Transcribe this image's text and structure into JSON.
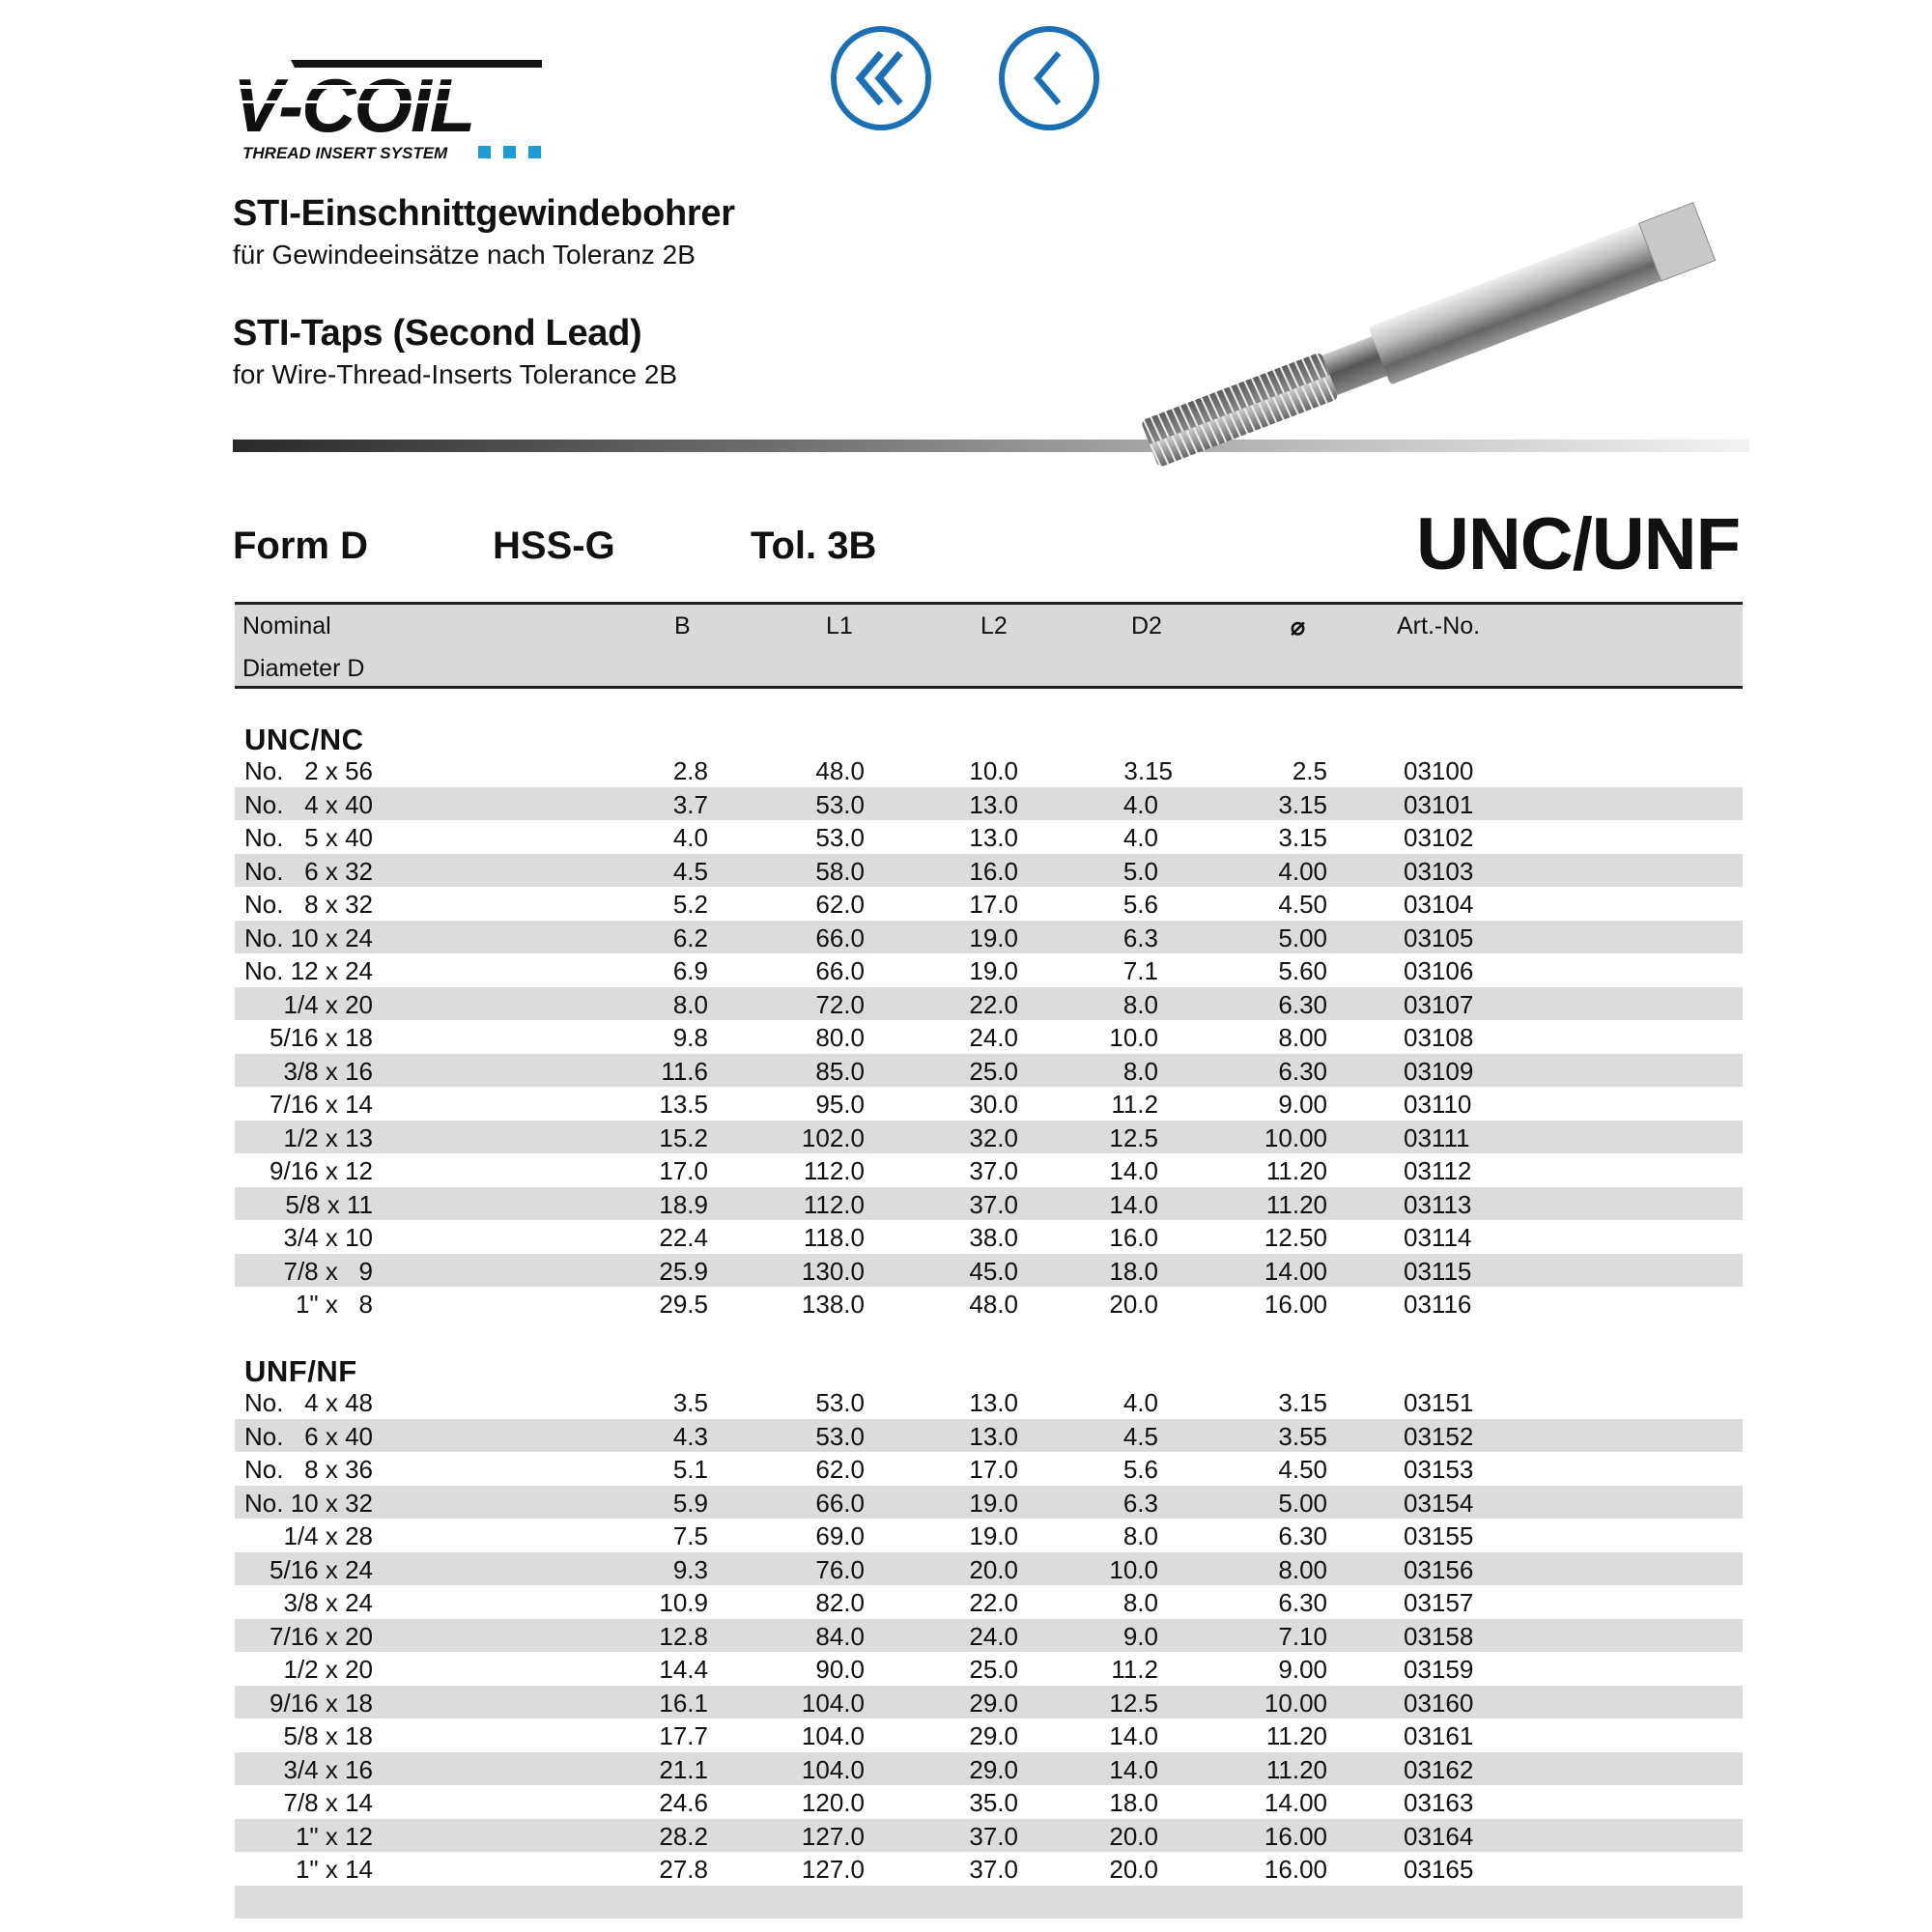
{
  "logo": {
    "text": "V-COIL",
    "tagline": "THREAD INSERT SYSTEM",
    "accent": "#1e9ad6"
  },
  "nav": {
    "first_icon": "double-chevron-left-icon",
    "back_icon": "chevron-left-icon",
    "color": "#1a6fb5"
  },
  "title_de": "STI-Einschnittgewindebohrer",
  "subtitle_de": "für Gewindeeinsätze nach Toleranz 2B",
  "title_en": "STI-Taps (Second Lead)",
  "subtitle_en": "for Wire-Thread-Inserts Tolerance 2B",
  "specs": {
    "form": "Form D",
    "material": "HSS-G",
    "tolerance": "Tol. 3B",
    "standard": "UNC/UNF"
  },
  "table": {
    "headers": {
      "nominal_1": "Nominal",
      "nominal_2": "Diameter D",
      "b": "B",
      "l1": "L1",
      "l2": "L2",
      "d2": "D2",
      "square": "⌀",
      "art": "Art.-No."
    },
    "sections": [
      {
        "title": "UNC/NC",
        "rows": [
          [
            "No.",
            "2 x 56",
            "2.8",
            "48.0",
            "10.0",
            "3.15",
            "2.5",
            "03100"
          ],
          [
            "No.",
            "4 x 40",
            "3.7",
            "53.0",
            "13.0",
            "4.0",
            "3.15",
            "03101"
          ],
          [
            "No.",
            "5 x 40",
            "4.0",
            "53.0",
            "13.0",
            "4.0",
            "3.15",
            "03102"
          ],
          [
            "No.",
            "6 x 32",
            "4.5",
            "58.0",
            "16.0",
            "5.0",
            "4.00",
            "03103"
          ],
          [
            "No.",
            "8 x 32",
            "5.2",
            "62.0",
            "17.0",
            "5.6",
            "4.50",
            "03104"
          ],
          [
            "No.",
            "10 x 24",
            "6.2",
            "66.0",
            "19.0",
            "6.3",
            "5.00",
            "03105"
          ],
          [
            "No.",
            "12 x 24",
            "6.9",
            "66.0",
            "19.0",
            "7.1",
            "5.60",
            "03106"
          ],
          [
            "",
            "1/4 x 20",
            "8.0",
            "72.0",
            "22.0",
            "8.0",
            "6.30",
            "03107"
          ],
          [
            "",
            "5/16 x 18",
            "9.8",
            "80.0",
            "24.0",
            "10.0",
            "8.00",
            "03108"
          ],
          [
            "",
            "3/8 x 16",
            "11.6",
            "85.0",
            "25.0",
            "8.0",
            "6.30",
            "03109"
          ],
          [
            "",
            "7/16 x 14",
            "13.5",
            "95.0",
            "30.0",
            "11.2",
            "9.00",
            "03110"
          ],
          [
            "",
            "1/2 x 13",
            "15.2",
            "102.0",
            "32.0",
            "12.5",
            "10.00",
            "03111"
          ],
          [
            "",
            "9/16 x 12",
            "17.0",
            "112.0",
            "37.0",
            "14.0",
            "11.20",
            "03112"
          ],
          [
            "",
            "5/8 x 11",
            "18.9",
            "112.0",
            "37.0",
            "14.0",
            "11.20",
            "03113"
          ],
          [
            "",
            "3/4 x 10",
            "22.4",
            "118.0",
            "38.0",
            "16.0",
            "12.50",
            "03114"
          ],
          [
            "",
            "7/8 x   9",
            "25.9",
            "130.0",
            "45.0",
            "18.0",
            "14.00",
            "03115"
          ],
          [
            "",
            "1\" x   8",
            "29.5",
            "138.0",
            "48.0",
            "20.0",
            "16.00",
            "03116"
          ]
        ]
      },
      {
        "title": "UNF/NF",
        "rows": [
          [
            "No.",
            "4 x 48",
            "3.5",
            "53.0",
            "13.0",
            "4.0",
            "3.15",
            "03151"
          ],
          [
            "No.",
            "6 x 40",
            "4.3",
            "53.0",
            "13.0",
            "4.5",
            "3.55",
            "03152"
          ],
          [
            "No.",
            "8 x 36",
            "5.1",
            "62.0",
            "17.0",
            "5.6",
            "4.50",
            "03153"
          ],
          [
            "No.",
            "10 x 32",
            "5.9",
            "66.0",
            "19.0",
            "6.3",
            "5.00",
            "03154"
          ],
          [
            "",
            "1/4 x 28",
            "7.5",
            "69.0",
            "19.0",
            "8.0",
            "6.30",
            "03155"
          ],
          [
            "",
            "5/16 x 24",
            "9.3",
            "76.0",
            "20.0",
            "10.0",
            "8.00",
            "03156"
          ],
          [
            "",
            "3/8 x 24",
            "10.9",
            "82.0",
            "22.0",
            "8.0",
            "6.30",
            "03157"
          ],
          [
            "",
            "7/16 x 20",
            "12.8",
            "84.0",
            "24.0",
            "9.0",
            "7.10",
            "03158"
          ],
          [
            "",
            "1/2 x 20",
            "14.4",
            "90.0",
            "25.0",
            "11.2",
            "9.00",
            "03159"
          ],
          [
            "",
            "9/16 x 18",
            "16.1",
            "104.0",
            "29.0",
            "12.5",
            "10.00",
            "03160"
          ],
          [
            "",
            "5/8 x 18",
            "17.7",
            "104.0",
            "29.0",
            "14.0",
            "11.20",
            "03161"
          ],
          [
            "",
            "3/4 x 16",
            "21.1",
            "104.0",
            "29.0",
            "14.0",
            "11.20",
            "03162"
          ],
          [
            "",
            "7/8 x 14",
            "24.6",
            "120.0",
            "35.0",
            "18.0",
            "14.00",
            "03163"
          ],
          [
            "",
            "1\" x 12",
            "28.2",
            "127.0",
            "37.0",
            "20.0",
            "16.00",
            "03164"
          ],
          [
            "",
            "1\" x 14",
            "27.8",
            "127.0",
            "37.0",
            "20.0",
            "16.00",
            "03165"
          ]
        ]
      }
    ]
  }
}
